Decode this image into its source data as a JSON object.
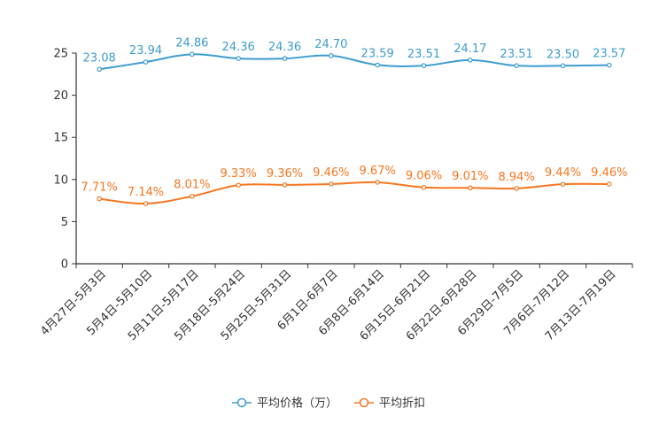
{
  "chart_data": {
    "type": "line",
    "title": "",
    "xlabel": "",
    "ylabel": "",
    "ylim": [
      0,
      25
    ],
    "yticks": [
      0,
      5,
      10,
      15,
      20,
      25
    ],
    "grid": false,
    "legend_position": "bottom-center",
    "categories": [
      "4月27日-5月3日",
      "5月4日-5月10日",
      "5月11日-5月17日",
      "5月18日-5月24日",
      "5月25日-5月31日",
      "6月1日-6月7日",
      "6月8日-6月14日",
      "6月15日-6月21日",
      "6月22日-6月28日",
      "6月29日-7月5日",
      "7月6日-7月12日",
      "7月13日-7月19日"
    ],
    "series": [
      {
        "name": "平均价格（万）",
        "color": "#3d9ccf",
        "values": [
          23.08,
          23.94,
          24.86,
          24.36,
          24.36,
          24.7,
          23.59,
          23.51,
          24.17,
          23.51,
          23.5,
          23.57
        ],
        "labels": [
          "23.08",
          "23.94",
          "24.86",
          "24.36",
          "24.36",
          "24.70",
          "23.59",
          "23.51",
          "24.17",
          "23.51",
          "23.50",
          "23.57"
        ]
      },
      {
        "name": "平均折扣",
        "color": "#f5761f",
        "values": [
          7.71,
          7.14,
          8.01,
          9.33,
          9.36,
          9.46,
          9.67,
          9.06,
          9.01,
          8.94,
          9.44,
          9.46
        ],
        "labels": [
          "7.71%",
          "7.14%",
          "8.01%",
          "9.33%",
          "9.36%",
          "9.46%",
          "9.67%",
          "9.06%",
          "9.01%",
          "8.94%",
          "9.44%",
          "9.46%"
        ]
      }
    ]
  }
}
